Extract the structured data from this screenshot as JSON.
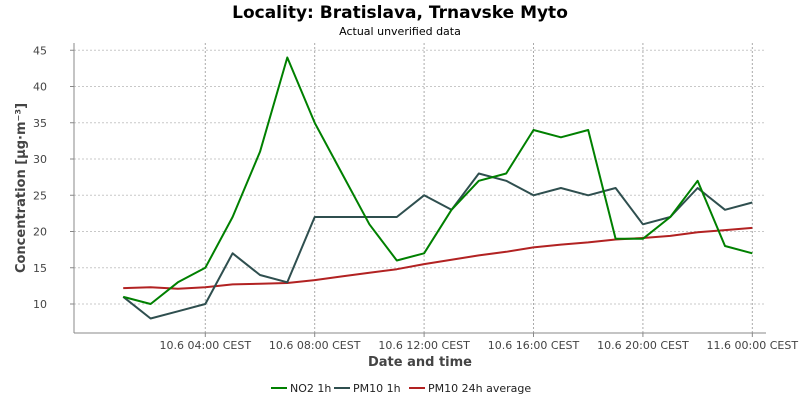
{
  "chart_data": {
    "type": "line",
    "title": "Locality: Bratislava, Trnavske Myto",
    "subtitle": "Actual unverified data",
    "xlabel": "Date and time",
    "ylabel": "Concentration [µg·m⁻³]",
    "ylim": [
      6,
      46
    ],
    "yticks": [
      10,
      15,
      20,
      25,
      30,
      35,
      40,
      45
    ],
    "xlim_hours": [
      -0.8,
      24.5
    ],
    "xticks": [
      {
        "label": "10.6 04:00 CEST",
        "hour": 4
      },
      {
        "label": "10.6 08:00 CEST",
        "hour": 8
      },
      {
        "label": "10.6 12:00 CEST",
        "hour": 12
      },
      {
        "label": "10.6 16:00 CEST",
        "hour": 16
      },
      {
        "label": "10.6 20:00 CEST",
        "hour": 20
      },
      {
        "label": "11.6 00:00 CEST",
        "hour": 24
      }
    ],
    "grid": true,
    "legend_position": "bottom",
    "x_hours": [
      1,
      2,
      3,
      4,
      5,
      6,
      7,
      8,
      9,
      10,
      11,
      12,
      13,
      14,
      15,
      16,
      17,
      18,
      19,
      20,
      21,
      22,
      23,
      24
    ],
    "series": [
      {
        "name": "NO2 1h",
        "color": "#008000",
        "values": [
          11,
          10,
          13,
          15,
          22,
          31,
          44,
          35,
          28,
          21,
          16,
          17,
          23,
          27,
          28,
          34,
          33,
          34,
          19,
          19,
          22,
          27,
          18,
          17
        ]
      },
      {
        "name": "PM10 1h",
        "color": "#2f4f4f",
        "values": [
          11,
          8,
          9,
          10,
          17,
          14,
          13,
          22,
          22,
          22,
          22,
          25,
          23,
          28,
          27,
          25,
          26,
          25,
          26,
          21,
          22,
          26,
          23,
          24
        ]
      },
      {
        "name": "PM10 24h average",
        "color": "#b22222",
        "values": [
          12.2,
          12.3,
          12.1,
          12.3,
          12.7,
          12.8,
          12.9,
          13.3,
          13.8,
          14.3,
          14.8,
          15.5,
          16.1,
          16.7,
          17.2,
          17.8,
          18.2,
          18.5,
          18.9,
          19.1,
          19.4,
          19.9,
          20.2,
          20.5
        ]
      }
    ]
  }
}
